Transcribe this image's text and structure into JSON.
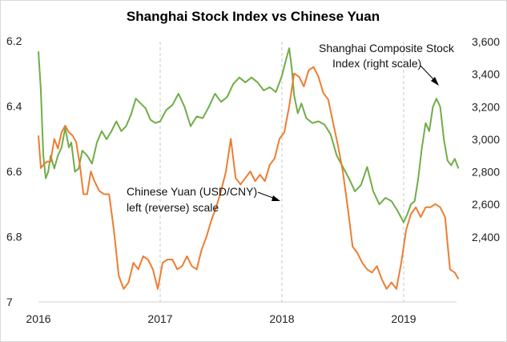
{
  "chart_data": {
    "type": "line",
    "title": "Shanghai Stock Index vs Chinese Yuan",
    "x_ticks": [
      "2016",
      "2017",
      "2018",
      "2019"
    ],
    "left_axis": {
      "reverse": true,
      "ylim": [
        7.0,
        6.0
      ],
      "ticks": [
        "6.2",
        "6.4",
        "6.6",
        "6.8",
        "7"
      ]
    },
    "right_axis": {
      "ylim": [
        2000,
        3600
      ],
      "ticks": [
        "3,600",
        "3,400",
        "3,200",
        "3,000",
        "2,800",
        "2,600",
        "2,400"
      ]
    },
    "gridlines": "vertical dashed at year boundaries",
    "series": [
      {
        "name": "Shanghai Composite Stock Index (right scale)",
        "axis": "right",
        "color": "#70ad47",
        "x": [
          2016.0,
          2016.02,
          2016.04,
          2016.06,
          2016.08,
          2016.1,
          2016.13,
          2016.16,
          2016.19,
          2016.22,
          2016.25,
          2016.27,
          2016.3,
          2016.33,
          2016.36,
          2016.4,
          2016.44,
          2016.48,
          2016.52,
          2016.56,
          2016.6,
          2016.64,
          2016.68,
          2016.72,
          2016.76,
          2016.8,
          2016.84,
          2016.88,
          2016.92,
          2016.96,
          2017.0,
          2017.05,
          2017.1,
          2017.15,
          2017.2,
          2017.25,
          2017.3,
          2017.35,
          2017.4,
          2017.45,
          2017.5,
          2017.55,
          2017.6,
          2017.65,
          2017.7,
          2017.75,
          2017.8,
          2017.85,
          2017.9,
          2017.95,
          2018.0,
          2018.03,
          2018.06,
          2018.08,
          2018.1,
          2018.13,
          2018.16,
          2018.2,
          2018.25,
          2018.3,
          2018.35,
          2018.4,
          2018.45,
          2018.5,
          2018.55,
          2018.6,
          2018.65,
          2018.7,
          2018.75,
          2018.8,
          2018.85,
          2018.9,
          2018.95,
          2019.0,
          2019.03,
          2019.06,
          2019.09,
          2019.12,
          2019.15,
          2019.18,
          2019.21,
          2019.24,
          2019.27,
          2019.3,
          2019.33,
          2019.36,
          2019.39,
          2019.42,
          2019.45
        ],
        "values": [
          3540,
          3300,
          2900,
          2760,
          2800,
          2900,
          2820,
          2900,
          2950,
          3070,
          2950,
          2980,
          2800,
          2820,
          2930,
          2900,
          2850,
          2980,
          3050,
          3000,
          3050,
          3110,
          3050,
          3080,
          3150,
          3250,
          3220,
          3190,
          3120,
          3100,
          3110,
          3180,
          3210,
          3280,
          3200,
          3080,
          3140,
          3130,
          3200,
          3280,
          3230,
          3260,
          3340,
          3380,
          3350,
          3380,
          3350,
          3300,
          3320,
          3290,
          3390,
          3480,
          3560,
          3440,
          3270,
          3160,
          3220,
          3130,
          3100,
          3110,
          3090,
          3030,
          2900,
          2830,
          2760,
          2680,
          2720,
          2830,
          2680,
          2600,
          2640,
          2620,
          2560,
          2490,
          2540,
          2600,
          2620,
          2760,
          2950,
          3100,
          3050,
          3200,
          3250,
          3200,
          3000,
          2870,
          2840,
          2880,
          2820
        ]
      },
      {
        "name": "Chinese Yuan (USD/CNY) left (reverse) scale",
        "axis": "left",
        "color": "#ed7d31",
        "x": [
          2016.0,
          2016.02,
          2016.04,
          2016.07,
          2016.1,
          2016.13,
          2016.16,
          2016.19,
          2016.22,
          2016.25,
          2016.28,
          2016.31,
          2016.34,
          2016.37,
          2016.4,
          2016.43,
          2016.46,
          2016.5,
          2016.54,
          2016.58,
          2016.62,
          2016.66,
          2016.7,
          2016.74,
          2016.78,
          2016.82,
          2016.86,
          2016.9,
          2016.94,
          2016.98,
          2017.02,
          2017.06,
          2017.1,
          2017.14,
          2017.18,
          2017.22,
          2017.26,
          2017.3,
          2017.34,
          2017.38,
          2017.42,
          2017.46,
          2017.5,
          2017.54,
          2017.58,
          2017.62,
          2017.66,
          2017.7,
          2017.74,
          2017.78,
          2017.82,
          2017.86,
          2017.9,
          2017.94,
          2017.98,
          2018.02,
          2018.06,
          2018.1,
          2018.14,
          2018.18,
          2018.22,
          2018.26,
          2018.3,
          2018.34,
          2018.38,
          2018.42,
          2018.46,
          2018.5,
          2018.54,
          2018.58,
          2018.62,
          2018.66,
          2018.7,
          2018.74,
          2018.78,
          2018.82,
          2018.86,
          2018.9,
          2018.94,
          2018.98,
          2019.02,
          2019.06,
          2019.1,
          2019.14,
          2019.18,
          2019.22,
          2019.26,
          2019.3,
          2019.34,
          2019.38,
          2019.42,
          2019.45
        ],
        "values": [
          6.49,
          6.59,
          6.58,
          6.57,
          6.57,
          6.5,
          6.53,
          6.48,
          6.46,
          6.48,
          6.49,
          6.51,
          6.58,
          6.67,
          6.67,
          6.6,
          6.63,
          6.66,
          6.67,
          6.67,
          6.78,
          6.92,
          6.96,
          6.94,
          6.88,
          6.9,
          6.86,
          6.87,
          6.9,
          6.96,
          6.88,
          6.87,
          6.87,
          6.9,
          6.89,
          6.86,
          6.89,
          6.9,
          6.84,
          6.8,
          6.75,
          6.71,
          6.66,
          6.6,
          6.5,
          6.62,
          6.64,
          6.62,
          6.6,
          6.63,
          6.61,
          6.63,
          6.58,
          6.56,
          6.5,
          6.48,
          6.4,
          6.3,
          6.31,
          6.34,
          6.29,
          6.28,
          6.31,
          6.36,
          6.38,
          6.45,
          6.52,
          6.6,
          6.71,
          6.83,
          6.85,
          6.88,
          6.9,
          6.91,
          6.89,
          6.93,
          6.96,
          6.94,
          6.96,
          6.88,
          6.78,
          6.73,
          6.71,
          6.74,
          6.71,
          6.71,
          6.7,
          6.71,
          6.74,
          6.9,
          6.91,
          6.93
        ]
      }
    ],
    "annotations": [
      {
        "lines": [
          "Shanghai Composite Stock",
          "Index (right scale)"
        ]
      },
      {
        "lines": [
          "Chinese Yuan (USD/CNY)",
          "left (reverse) scale"
        ]
      }
    ]
  }
}
